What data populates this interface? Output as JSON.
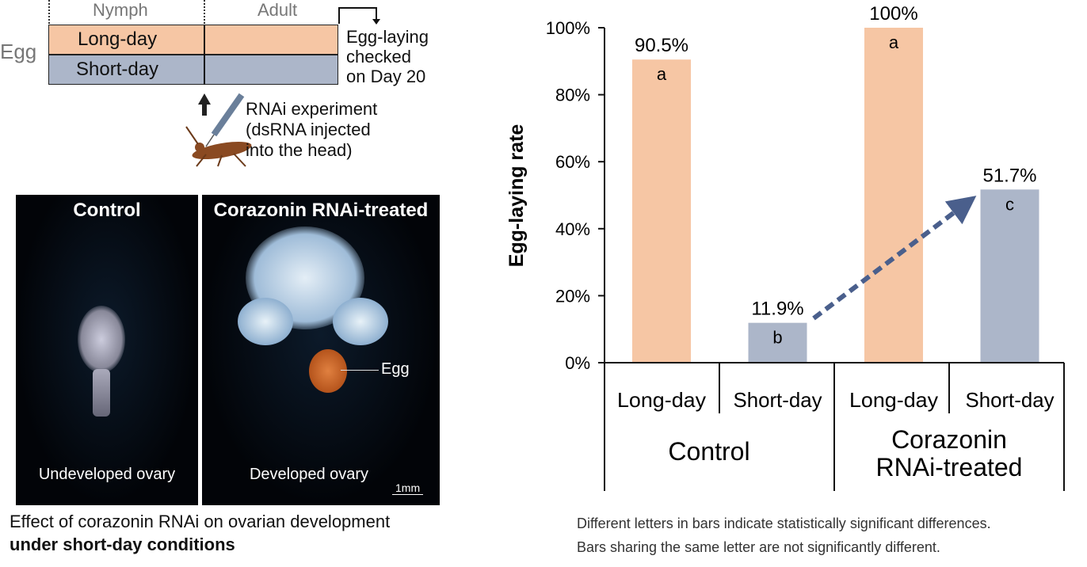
{
  "timeline": {
    "stages": [
      "Nymph",
      "Adult"
    ],
    "start_label": "Egg",
    "rows": [
      {
        "label": "Long-day",
        "color": "#f6c6a4"
      },
      {
        "label": "Short-day",
        "color": "#acb6c9"
      }
    ],
    "check_note": [
      "Egg-laying",
      "checked",
      "on Day 20"
    ],
    "injection_note": [
      "RNAi experiment",
      "(dsRNA injected",
      "into the head)"
    ]
  },
  "photos": {
    "control": {
      "title": "Control",
      "caption": "Undeveloped ovary"
    },
    "treated": {
      "title": "Corazonin RNAi-treated",
      "caption": "Developed ovary",
      "egg_label": "Egg",
      "scale_bar": "1mm"
    },
    "figure_caption": "Effect of corazonin RNAi on ovarian development",
    "figure_caption_bold": "under short-day conditions"
  },
  "chart_data": {
    "type": "bar",
    "ylabel": "Egg-laying rate",
    "ylim": [
      0,
      100
    ],
    "yticks": [
      "0%",
      "20%",
      "40%",
      "60%",
      "80%",
      "100%"
    ],
    "categories": [
      "Long-day",
      "Short-day",
      "Long-day",
      "Short-day"
    ],
    "groups": [
      "Control",
      "Corazonin RNAi-treated"
    ],
    "values": [
      90.5,
      11.9,
      100,
      51.7
    ],
    "value_labels": [
      "90.5%",
      "11.9%",
      "100%",
      "51.7%"
    ],
    "letters": [
      "a",
      "b",
      "a",
      "c"
    ],
    "colors": [
      "#f6c6a4",
      "#acb6c9",
      "#f6c6a4",
      "#acb6c9"
    ],
    "arrow_color": "#4a5f8c",
    "notes": [
      "Different letters in bars indicate statistically significant differences.",
      "Bars sharing the same letter are not significantly different."
    ]
  }
}
